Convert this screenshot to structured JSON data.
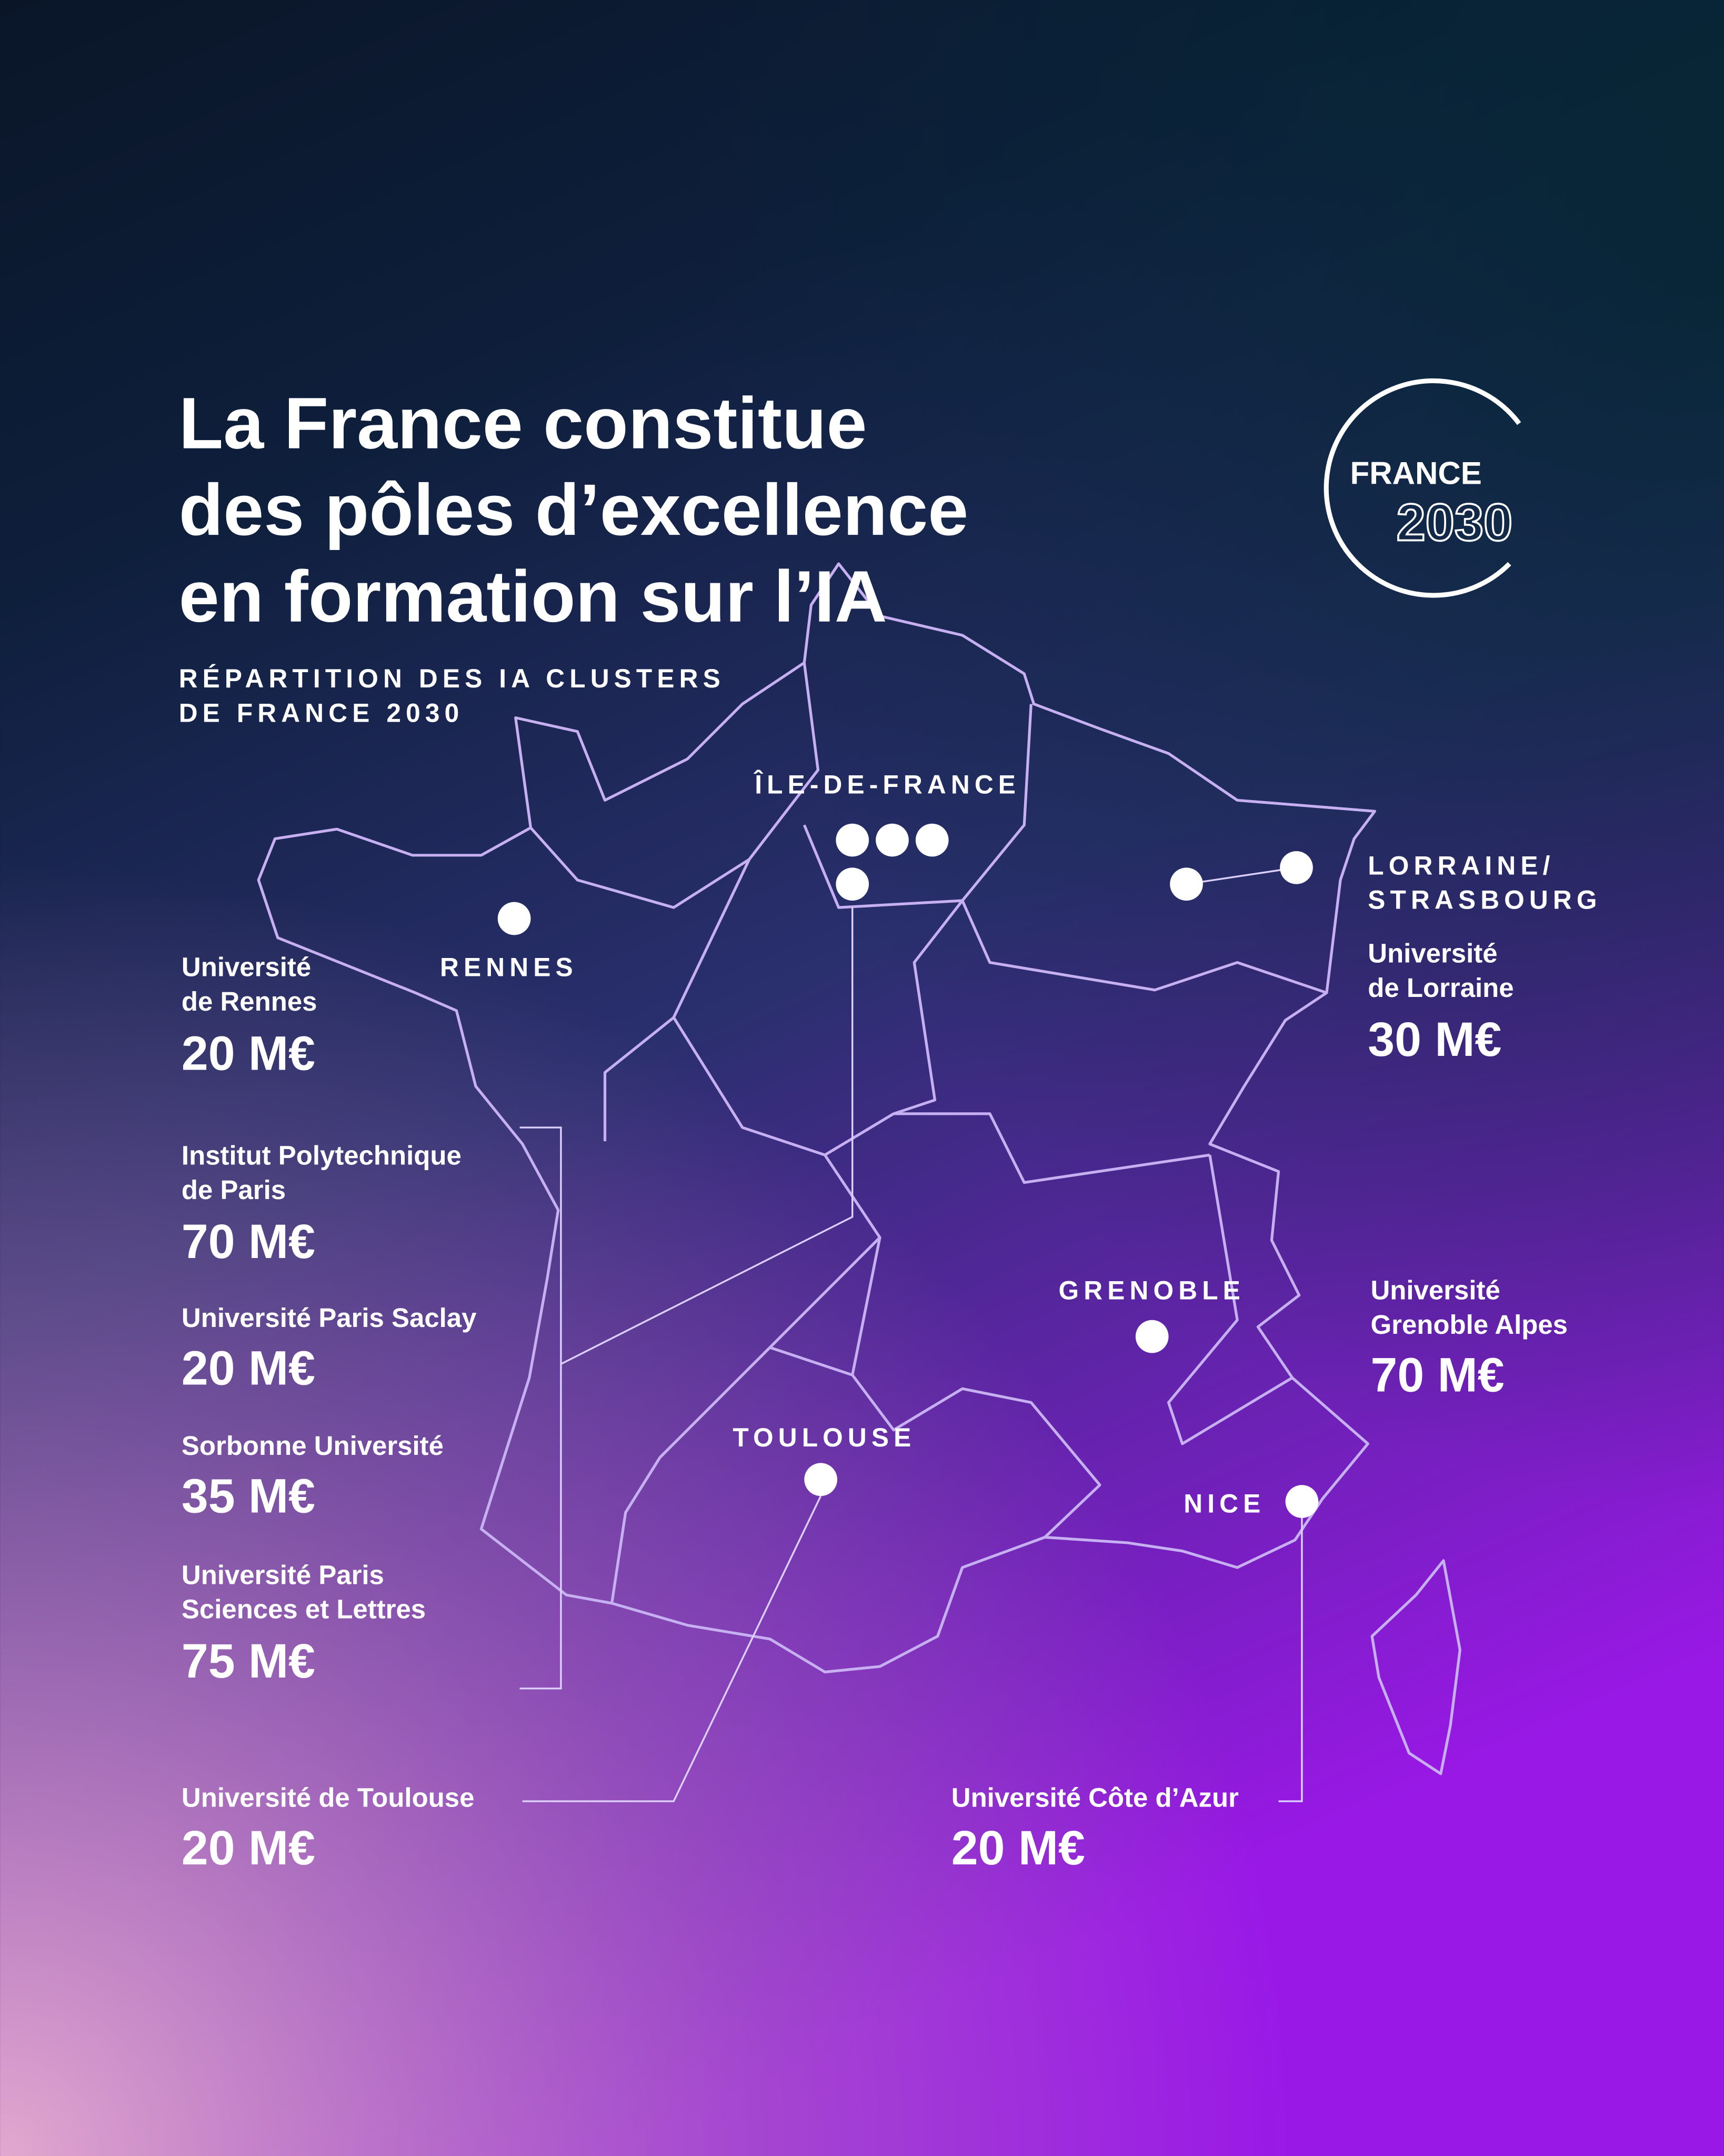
{
  "title": [
    "La France constitue",
    "des pôles d’excellence",
    "en formation sur l’IA"
  ],
  "subtitle": [
    "RÉPARTITION DES IA CLUSTERS",
    "DE FRANCE 2030"
  ],
  "logo": {
    "top": "FRANCE",
    "bottom": "2030"
  },
  "regions": [
    {
      "label": [
        "RENNES"
      ],
      "institutions": [
        {
          "name": [
            "Université",
            "de Rennes"
          ],
          "amount": "20 M€"
        }
      ]
    },
    {
      "label": [
        "ÎLE-DE-FRANCE"
      ],
      "institutions": [
        {
          "name": [
            "Institut Polytechnique",
            "de Paris"
          ],
          "amount": "70 M€"
        },
        {
          "name": [
            "Université Paris Saclay"
          ],
          "amount": "20 M€"
        },
        {
          "name": [
            "Sorbonne Université"
          ],
          "amount": "35 M€"
        },
        {
          "name": [
            "Université Paris",
            "Sciences et Lettres"
          ],
          "amount": "75 M€"
        }
      ]
    },
    {
      "label": [
        "LORRAINE/",
        "STRASBOURG"
      ],
      "institutions": [
        {
          "name": [
            "Université",
            "de Lorraine"
          ],
          "amount": "30 M€"
        }
      ]
    },
    {
      "label": [
        "GRENOBLE"
      ],
      "institutions": [
        {
          "name": [
            "Université",
            "Grenoble Alpes"
          ],
          "amount": "70 M€"
        }
      ]
    },
    {
      "label": [
        "TOULOUSE"
      ],
      "institutions": [
        {
          "name": [
            "Université de Toulouse"
          ],
          "amount": "20 M€"
        }
      ]
    },
    {
      "label": [
        "NICE"
      ],
      "institutions": [
        {
          "name": [
            "Université Côte d’Azur"
          ],
          "amount": "20 M€"
        }
      ]
    }
  ]
}
